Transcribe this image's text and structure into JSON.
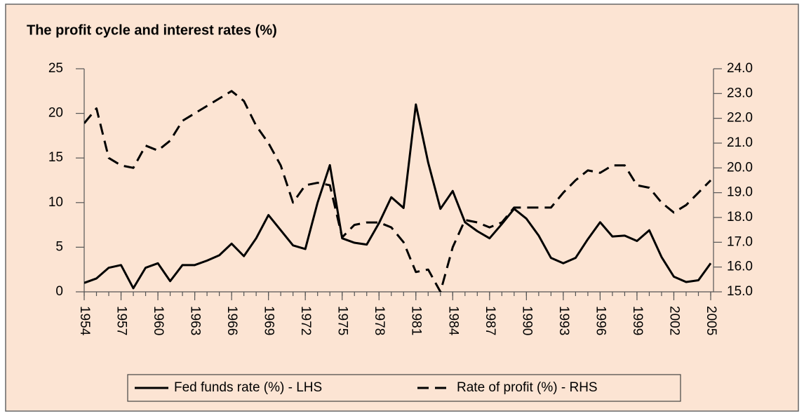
{
  "chart_data": {
    "type": "line",
    "title": "The profit cycle and interest rates (%)",
    "x": [
      1954,
      1955,
      1956,
      1957,
      1958,
      1959,
      1960,
      1961,
      1962,
      1963,
      1964,
      1965,
      1966,
      1967,
      1968,
      1969,
      1970,
      1971,
      1972,
      1973,
      1974,
      1975,
      1976,
      1977,
      1978,
      1979,
      1980,
      1981,
      1982,
      1983,
      1984,
      1985,
      1986,
      1987,
      1988,
      1989,
      1990,
      1991,
      1992,
      1993,
      1994,
      1995,
      1996,
      1997,
      1998,
      1999,
      2000,
      2001,
      2002,
      2003,
      2004,
      2005
    ],
    "xlim": [
      1954,
      2005
    ],
    "xticks": [
      1954,
      1957,
      1960,
      1963,
      1966,
      1969,
      1972,
      1975,
      1978,
      1981,
      1984,
      1987,
      1990,
      1993,
      1996,
      1999,
      2002,
      2005
    ],
    "ylim": [
      0,
      25
    ],
    "yticks": [
      0,
      5,
      10,
      15,
      20,
      25
    ],
    "y2lim": [
      15,
      24
    ],
    "y2ticks": [
      {
        "value": 15,
        "label": "15.0"
      },
      {
        "value": 16,
        "label": "16.0"
      },
      {
        "value": 17,
        "label": "17.0"
      },
      {
        "value": 18,
        "label": "18.0"
      },
      {
        "value": 19,
        "label": "19.0"
      },
      {
        "value": 20,
        "label": "20.0"
      },
      {
        "value": 21,
        "label": "21.0"
      },
      {
        "value": 22,
        "label": "22.0"
      },
      {
        "value": 23,
        "label": "23.0"
      },
      {
        "value": 24,
        "label": "24.0"
      }
    ],
    "legend": "bottom",
    "series": [
      {
        "name": "Fed funds rate (%) - LHS",
        "color": "#000000",
        "dash": "solid",
        "values": [
          1.0,
          1.5,
          2.7,
          3.0,
          0.4,
          2.7,
          3.2,
          1.2,
          3.0,
          3.0,
          3.5,
          4.1,
          5.4,
          4.0,
          6.0,
          8.6,
          6.9,
          5.2,
          4.8,
          10.0,
          14.2,
          6.0,
          5.5,
          5.3,
          7.7,
          10.6,
          9.4,
          21.0,
          14.5,
          9.3,
          11.3,
          7.8,
          6.8,
          6.0,
          7.6,
          9.3,
          8.2,
          6.3,
          3.8,
          3.2,
          3.8,
          5.9,
          7.8,
          6.2,
          6.3,
          5.7,
          6.9,
          3.9,
          1.7,
          1.1,
          1.3,
          3.2
        ]
      },
      {
        "name": "Rate of profit (%) - RHS",
        "color": "#000000",
        "dash": "dashed",
        "axis": "y2",
        "values": [
          21.8,
          22.4,
          20.4,
          20.1,
          20.0,
          20.9,
          20.7,
          21.1,
          21.9,
          22.2,
          22.5,
          22.8,
          23.1,
          22.7,
          21.7,
          21.0,
          20.1,
          18.6,
          19.3,
          19.4,
          19.3,
          17.2,
          17.7,
          17.8,
          17.8,
          17.6,
          17.0,
          15.8,
          15.9,
          15.0,
          16.8,
          17.9,
          17.8,
          17.6,
          17.8,
          18.4,
          18.4,
          18.4,
          18.4,
          19.0,
          19.5,
          19.9,
          19.8,
          20.1,
          20.1,
          19.3,
          19.2,
          18.6,
          18.2,
          18.5,
          19.0,
          19.5
        ]
      }
    ]
  }
}
